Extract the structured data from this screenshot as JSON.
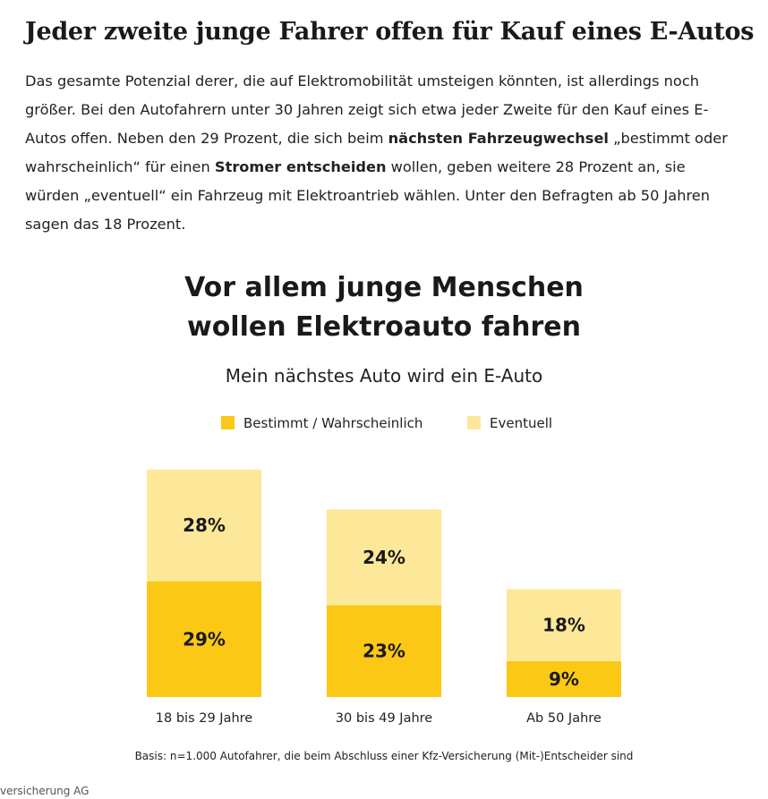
{
  "article": {
    "headline": "Jeder zweite junge Fahrer offen für Kauf eines E-Autos",
    "para_1": "Das gesamte Potenzial derer, die auf Elektromobilität umsteigen könnten, ist allerdings noch größer. Bei den Autofahrern unter 30 Jahren zeigt sich etwa jeder Zweite für den Kauf eines E-Autos offen. Neben den 29 Prozent, die sich beim ",
    "bold_1": "nächsten Fahrzeugwechsel",
    "para_2": " „bestimmt oder wahrscheinlich“ für einen ",
    "bold_2": "Stromer entscheiden",
    "para_3": " wollen, geben weitere 28 Prozent an, sie würden „eventuell“ ein Fahrzeug mit Elektroantrieb wählen. Unter den Befragten ab 50 Jahren sagen das 18 Prozent."
  },
  "chart_data": {
    "type": "bar",
    "stacked": true,
    "title_line_1": "Vor allem junge Menschen",
    "title_line_2": "wollen Elektroauto fahren",
    "subtitle": "Mein nächstes Auto wird ein E-Auto",
    "categories": [
      "18 bis 29 Jahre",
      "30 bis 49 Jahre",
      "Ab 50 Jahre"
    ],
    "series": [
      {
        "name": "Bestimmt / Wahrscheinlich",
        "values": [
          29,
          23,
          9
        ],
        "color": "#fcc816"
      },
      {
        "name": "Eventuell",
        "values": [
          28,
          24,
          18
        ],
        "color": "#fde89a"
      }
    ],
    "value_suffix": "%",
    "ylim": [
      0,
      57
    ],
    "grid": false,
    "legend_position": "top",
    "note": "Basis: n=1.000 Autofahrer, die beim Abschluss einer Kfz-Versicherung (Mit-)Entscheider sind"
  },
  "footer": {
    "credit": "versicherung AG"
  }
}
